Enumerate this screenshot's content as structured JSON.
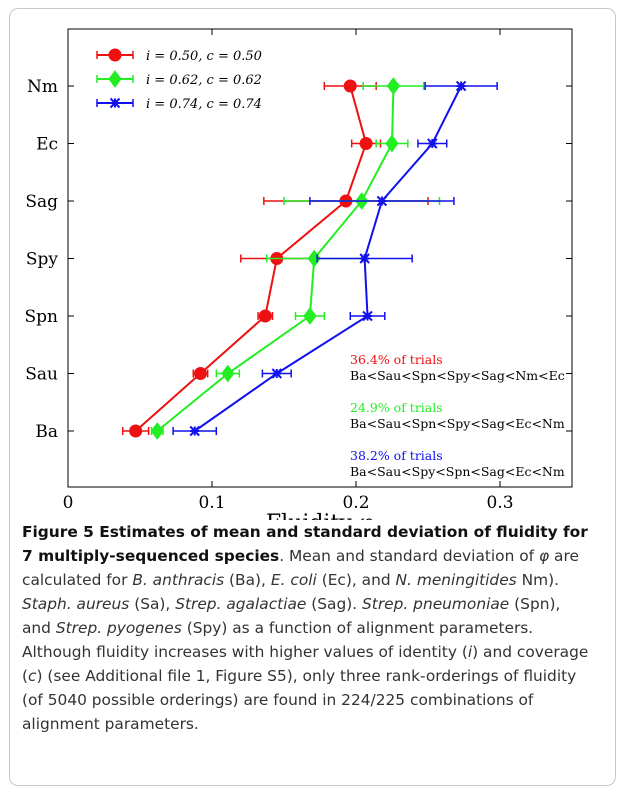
{
  "chart_data": {
    "type": "line",
    "orientation": "horizontal",
    "categories": [
      "Ba",
      "Sau",
      "Spn",
      "Spy",
      "Sag",
      "Ec",
      "Nm"
    ],
    "xlabel": "Fluidity φ",
    "ylabel": "",
    "xlim": [
      0,
      0.35
    ],
    "xticks": [
      0,
      0.1,
      0.2,
      0.3
    ],
    "xtick_labels": [
      "0",
      "0.1",
      "0.2",
      "0.3"
    ],
    "grid": false,
    "legend_position": "top-left",
    "series": [
      {
        "name": "i = 0.50, c = 0.50",
        "color": "#ee1111",
        "marker": "circle",
        "values": [
          0.047,
          0.092,
          0.137,
          0.145,
          0.193,
          0.207,
          0.196
        ],
        "errors": [
          0.009,
          0.005,
          0.005,
          0.025,
          0.057,
          0.01,
          0.018
        ]
      },
      {
        "name": "i = 0.62, c = 0.62",
        "color": "#22ee22",
        "marker": "diamond",
        "values": [
          0.062,
          0.111,
          0.168,
          0.171,
          0.204,
          0.225,
          0.226
        ],
        "errors": [
          0.004,
          0.008,
          0.01,
          0.033,
          0.054,
          0.011,
          0.021
        ]
      },
      {
        "name": "i = 0.74, c = 0.74",
        "color": "#1111ee",
        "marker": "asterisk",
        "values": [
          0.088,
          0.145,
          0.208,
          0.206,
          0.218,
          0.253,
          0.273
        ],
        "errors": [
          0.015,
          0.01,
          0.012,
          0.033,
          0.05,
          0.01,
          0.025
        ]
      }
    ],
    "annotations": [
      {
        "percent": "36.4% of trials",
        "ordering": "Ba<Sau<Spn<Spy<Sag<Nm<Ec",
        "color": "#ee1111"
      },
      {
        "percent": "24.9% of trials",
        "ordering": "Ba<Sau<Spn<Spy<Sag<Ec<Nm",
        "color": "#22ee22"
      },
      {
        "percent": "38.2% of trials",
        "ordering": "Ba<Sau<Spy<Spn<Sag<Ec<Nm",
        "color": "#1111ee"
      }
    ]
  },
  "caption": {
    "bold_title": "Figure 5 Estimates of mean and standard deviation of fluidity for 7 multiply-sequenced species",
    "p1": ". Mean and standard deviation of ",
    "phi": "φ",
    "p2": " are calculated for ",
    "ba": "B. anthracis",
    "p3": " (Ba), ",
    "ec": "E. coli",
    "p4": " (Ec), and ",
    "nm": "N. meningitides",
    "p5": " Nm). ",
    "sa": "Staph. aureus",
    "p6": " (Sa), ",
    "sag": "Strep. agalactiae",
    "p7": " (Sag). ",
    "spn": "Strep. pneumoniae",
    "p8": " (Spn), and ",
    "spy": "Strep. pyogenes",
    "p9": " (Spy) as a function of alignment parameters. Although fluidity increases with higher values of identity (",
    "i": "i",
    "p10": ") and coverage (",
    "c": "c",
    "p11": ") (see Additional file 1, Figure S5), only three rank-orderings of fluidity (of 5040 possible orderings) are found in 224/225 combinations of alignment parameters."
  }
}
